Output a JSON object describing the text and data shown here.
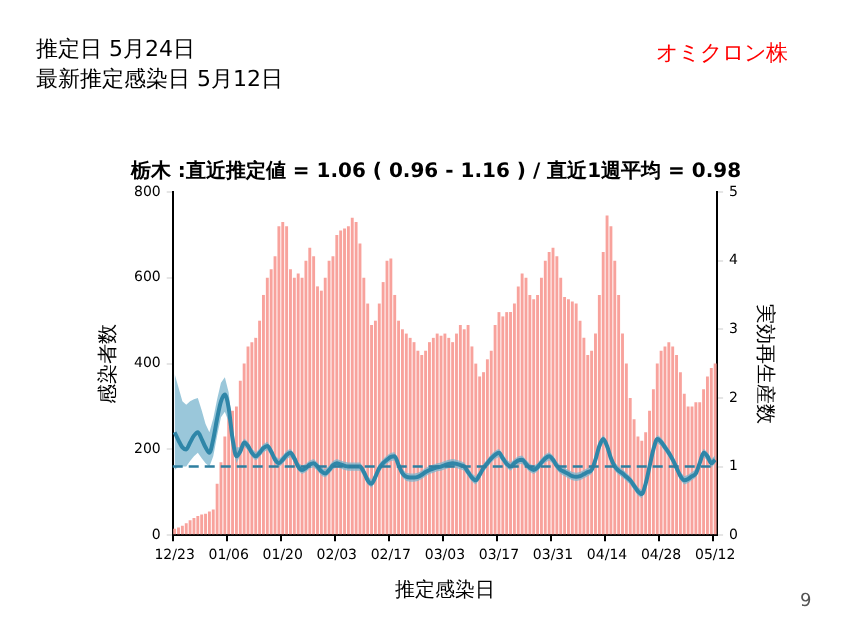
{
  "chart_data": {
    "type": "bar",
    "title": "栃木 :直近推定値 = 1.06 ( 0.96 - 1.16 ) / 直近1週平均 = 0.98",
    "xlabel": "推定感染日",
    "ylabel": "感染者数",
    "y2label": "実効再生産数",
    "annotations": [
      "推定日  5月24日",
      "最新推定感染日  5月12日",
      "オミクロン株",
      "9"
    ],
    "categories": [
      "12/23",
      null,
      null,
      null,
      null,
      null,
      null,
      null,
      null,
      null,
      null,
      null,
      null,
      null,
      "01/06",
      null,
      null,
      null,
      null,
      null,
      null,
      null,
      null,
      null,
      null,
      null,
      null,
      null,
      "01/20",
      null,
      null,
      null,
      null,
      null,
      null,
      null,
      null,
      null,
      null,
      null,
      null,
      null,
      "02/03",
      null,
      null,
      null,
      null,
      null,
      null,
      null,
      null,
      null,
      null,
      null,
      null,
      null,
      "02/17",
      null,
      null,
      null,
      null,
      null,
      null,
      null,
      null,
      null,
      null,
      null,
      null,
      null,
      "03/03",
      null,
      null,
      null,
      null,
      null,
      null,
      null,
      null,
      null,
      null,
      null,
      null,
      null,
      "03/17",
      null,
      null,
      null,
      null,
      null,
      null,
      null,
      null,
      null,
      null,
      null,
      null,
      null,
      "03/31",
      null,
      null,
      null,
      null,
      null,
      null,
      null,
      null,
      null,
      null,
      null,
      null,
      null,
      "04/14",
      null,
      null,
      null,
      null,
      null,
      null,
      null,
      null,
      null,
      null,
      null,
      null,
      null,
      "04/28",
      null,
      null,
      null,
      null,
      null,
      null,
      null,
      null,
      null,
      null,
      null,
      null,
      null,
      "05/12"
    ],
    "series": [
      {
        "color": "#f8a29c",
        "values": [
          15,
          18,
          22,
          28,
          35,
          40,
          45,
          48,
          50,
          55,
          60,
          120,
          170,
          230,
          280,
          290,
          300,
          360,
          400,
          440,
          450,
          460,
          500,
          560,
          600,
          620,
          650,
          720,
          730,
          720,
          620,
          600,
          610,
          600,
          640,
          670,
          650,
          580,
          570,
          600,
          640,
          650,
          700,
          710,
          715,
          720,
          740,
          730,
          680,
          600,
          540,
          490,
          500,
          540,
          590,
          640,
          645,
          560,
          500,
          480,
          470,
          460,
          450,
          430,
          420,
          430,
          450,
          460,
          470,
          465,
          470,
          460,
          450,
          470,
          490,
          480,
          490,
          440,
          400,
          370,
          380,
          410,
          430,
          490,
          520,
          510,
          520,
          520,
          540,
          580,
          610,
          600,
          560,
          550,
          560,
          600,
          640,
          660,
          670,
          650,
          600,
          555,
          550,
          545,
          540,
          500,
          460,
          420,
          430,
          470,
          560,
          660,
          745,
          720,
          640,
          560,
          470,
          400,
          320,
          270,
          230,
          220,
          240,
          290,
          340,
          400,
          430,
          440,
          450,
          440,
          420,
          380,
          330,
          300,
          300,
          310,
          310,
          340,
          370,
          390,
          400
        ]
      },
      {
        "type": "line",
        "axis": "y2",
        "color": "#2f86a8",
        "values": [
          1.5,
          1.38,
          1.28,
          1.25,
          1.35,
          1.45,
          1.5,
          1.4,
          1.28,
          1.2,
          1.4,
          1.7,
          1.95,
          2.05,
          1.85,
          1.4,
          1.15,
          1.22,
          1.35,
          1.3,
          1.2,
          1.15,
          1.2,
          1.27,
          1.3,
          1.22,
          1.1,
          1.05,
          1.1,
          1.17,
          1.2,
          1.12,
          1.0,
          0.95,
          0.98,
          1.03,
          1.05,
          1.0,
          0.93,
          0.9,
          0.95,
          1.02,
          1.05,
          1.03,
          1.01,
          1.0,
          1.0,
          1.0,
          1.0,
          0.92,
          0.8,
          0.75,
          0.85,
          0.98,
          1.05,
          1.1,
          1.14,
          1.15,
          1.02,
          0.9,
          0.85,
          0.84,
          0.84,
          0.85,
          0.88,
          0.92,
          0.95,
          0.97,
          0.99,
          1.0,
          1.02,
          1.04,
          1.05,
          1.04,
          1.02,
          1.0,
          0.92,
          0.84,
          0.8,
          0.88,
          0.98,
          1.05,
          1.12,
          1.17,
          1.2,
          1.12,
          1.04,
          1.0,
          1.05,
          1.09,
          1.1,
          1.04,
          0.98,
          0.95,
          0.99,
          1.06,
          1.12,
          1.15,
          1.1,
          1.01,
          0.95,
          0.92,
          0.89,
          0.86,
          0.85,
          0.86,
          0.89,
          0.92,
          0.95,
          1.1,
          1.3,
          1.4,
          1.3,
          1.12,
          1.0,
          0.94,
          0.9,
          0.85,
          0.8,
          0.72,
          0.64,
          0.6,
          0.75,
          1.0,
          1.25,
          1.4,
          1.36,
          1.28,
          1.2,
          1.1,
          0.98,
          0.86,
          0.8,
          0.82,
          0.86,
          0.9,
          1.05,
          1.2,
          1.15,
          1.05,
          1.1
        ],
        "lower": [
          0.95,
          1.0,
          1.0,
          1.0,
          1.08,
          1.15,
          1.2,
          1.12,
          1.05,
          1.0,
          1.15,
          1.45,
          1.72,
          1.8,
          1.65,
          1.28,
          1.05,
          1.16,
          1.29,
          1.24,
          1.14,
          1.09,
          1.14,
          1.21,
          1.24,
          1.16,
          1.04,
          0.99,
          1.04,
          1.11,
          1.14,
          1.06,
          0.94,
          0.89,
          0.92,
          0.97,
          0.99,
          0.94,
          0.87,
          0.84,
          0.89,
          0.96,
          0.99,
          0.97,
          0.95,
          0.94,
          0.94,
          0.94,
          0.94,
          0.86,
          0.74,
          0.69,
          0.79,
          0.92,
          0.99,
          1.04,
          1.08,
          1.09,
          0.96,
          0.84,
          0.79,
          0.78,
          0.78,
          0.79,
          0.82,
          0.86,
          0.89,
          0.91,
          0.93,
          0.94,
          0.96,
          0.98,
          0.99,
          0.98,
          0.96,
          0.94,
          0.86,
          0.78,
          0.74,
          0.82,
          0.92,
          0.99,
          1.06,
          1.11,
          1.14,
          1.06,
          0.98,
          0.94,
          0.99,
          1.03,
          1.04,
          0.98,
          0.92,
          0.89,
          0.93,
          1.0,
          1.06,
          1.09,
          1.04,
          0.95,
          0.89,
          0.86,
          0.83,
          0.8,
          0.79,
          0.8,
          0.83,
          0.86,
          0.89,
          1.04,
          1.24,
          1.34,
          1.24,
          1.06,
          0.94,
          0.88,
          0.84,
          0.79,
          0.74,
          0.66,
          0.58,
          0.54,
          0.69,
          0.94,
          1.19,
          1.34,
          1.3,
          1.22,
          1.14,
          1.04,
          0.92,
          0.8,
          0.74,
          0.76,
          0.8,
          0.84,
          0.99,
          1.14,
          1.09,
          0.99,
          1.04
        ],
        "upper": [
          2.35,
          2.15,
          1.95,
          1.9,
          1.95,
          1.98,
          2.0,
          1.82,
          1.62,
          1.5,
          1.7,
          1.98,
          2.22,
          2.3,
          2.08,
          1.55,
          1.28,
          1.28,
          1.41,
          1.36,
          1.26,
          1.21,
          1.26,
          1.33,
          1.36,
          1.28,
          1.16,
          1.11,
          1.16,
          1.23,
          1.26,
          1.18,
          1.06,
          1.01,
          1.04,
          1.09,
          1.11,
          1.06,
          0.99,
          0.96,
          1.01,
          1.08,
          1.11,
          1.09,
          1.07,
          1.06,
          1.06,
          1.06,
          1.06,
          0.98,
          0.86,
          0.81,
          0.91,
          1.04,
          1.11,
          1.16,
          1.2,
          1.21,
          1.08,
          0.96,
          0.91,
          0.9,
          0.9,
          0.91,
          0.94,
          0.98,
          1.01,
          1.03,
          1.05,
          1.06,
          1.08,
          1.1,
          1.11,
          1.1,
          1.08,
          1.06,
          0.98,
          0.9,
          0.86,
          0.94,
          1.04,
          1.11,
          1.18,
          1.23,
          1.26,
          1.18,
          1.1,
          1.06,
          1.11,
          1.15,
          1.16,
          1.1,
          1.04,
          1.01,
          1.05,
          1.12,
          1.18,
          1.21,
          1.16,
          1.07,
          1.01,
          0.98,
          0.95,
          0.92,
          0.91,
          0.92,
          0.95,
          0.98,
          1.01,
          1.16,
          1.36,
          1.46,
          1.36,
          1.18,
          1.06,
          1.0,
          0.96,
          0.91,
          0.86,
          0.78,
          0.7,
          0.66,
          0.81,
          1.06,
          1.31,
          1.46,
          1.42,
          1.34,
          1.26,
          1.16,
          1.04,
          0.92,
          0.86,
          0.88,
          0.92,
          0.96,
          1.11,
          1.26,
          1.21,
          1.11,
          1.16
        ]
      }
    ],
    "ylim": [
      0,
      800
    ],
    "yticks": [
      0,
      200,
      400,
      600,
      800
    ],
    "y2lim": [
      0,
      5
    ],
    "y2ticks": [
      0,
      1,
      2,
      3,
      4,
      5
    ],
    "ref_lines": [
      {
        "axis": "y2",
        "value": 1,
        "color": "#2f7fa0",
        "line_style": "dashed"
      }
    ],
    "grid": false,
    "legend": false
  }
}
